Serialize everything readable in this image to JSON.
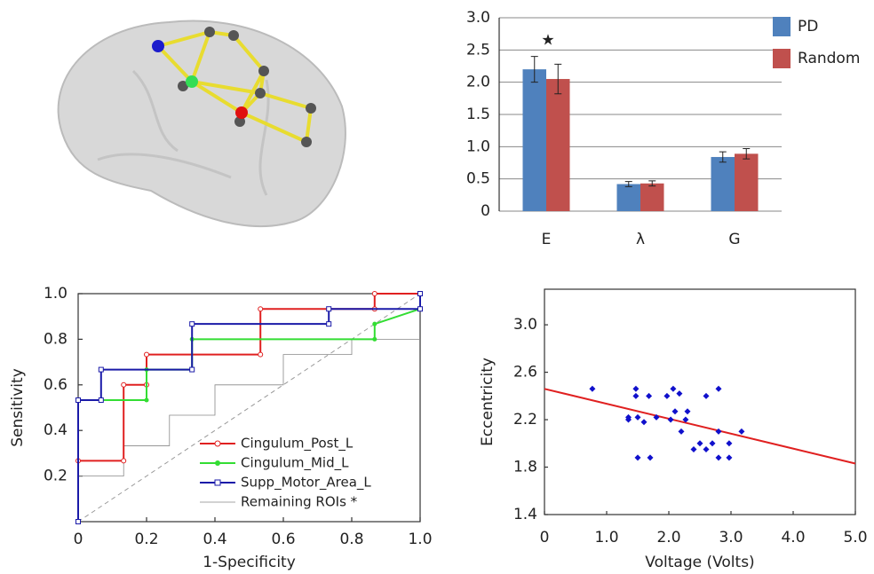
{
  "chart_data": [
    {
      "type": "bar",
      "categories": [
        "E",
        "λ",
        "G"
      ],
      "series": [
        {
          "name": "PD",
          "color": "#4f81bd",
          "values": [
            2.2,
            0.42,
            0.84
          ],
          "errors": [
            0.2,
            0.04,
            0.08
          ]
        },
        {
          "name": "Random",
          "color": "#c0504d",
          "values": [
            2.05,
            0.43,
            0.89
          ],
          "errors": [
            0.23,
            0.04,
            0.08
          ]
        }
      ],
      "annotation": "★",
      "ylim": [
        0,
        3
      ],
      "yticks": [
        0,
        0.5,
        {
          "value": 1,
          "label": "1.0"
        },
        1.5,
        {
          "value": 2,
          "label": "2.0"
        },
        2.5,
        {
          "value": 3,
          "label": "3.0"
        }
      ],
      "grid": true,
      "legend": "right"
    },
    {
      "type": "line",
      "xlabel": "1-Specificity",
      "ylabel": "Sensitivity",
      "series": [
        {
          "name": "Remaining ROIs *",
          "color": "#888888",
          "marker": "none",
          "x": [
            0,
            0,
            0.133,
            0.133,
            0.267,
            0.267,
            0.4,
            0.4,
            0.6,
            0.6,
            0.8,
            0.8,
            1
          ],
          "y": [
            0,
            0.2,
            0.2,
            0.333,
            0.333,
            0.467,
            0.467,
            0.6,
            0.6,
            0.733,
            0.733,
            0.8,
            0.8
          ]
        },
        {
          "name": "Cingulum_Post_L",
          "color": "#e02020",
          "marker": "circle",
          "x": [
            0,
            0,
            0.133,
            0.133,
            0.2,
            0.2,
            0.533,
            0.533,
            0.867,
            0.867,
            1
          ],
          "y": [
            0,
            0.267,
            0.267,
            0.6,
            0.6,
            0.733,
            0.733,
            0.933,
            0.933,
            1,
            1
          ]
        },
        {
          "name": "Cingulum_Mid_L",
          "color": "#33dd33",
          "marker": "dot",
          "x": [
            0,
            0,
            0.2,
            0.2,
            0.333,
            0.333,
            0.867,
            0.867,
            1
          ],
          "y": [
            0,
            0.533,
            0.533,
            0.667,
            0.667,
            0.8,
            0.8,
            0.867,
            0.933
          ]
        },
        {
          "name": "Supp_Motor_Area_L",
          "color": "#1a1aa8",
          "marker": "square",
          "x": [
            0,
            0,
            0.067,
            0.067,
            0.333,
            0.333,
            0.733,
            0.733,
            1,
            1
          ],
          "y": [
            0,
            0.533,
            0.533,
            0.667,
            0.667,
            0.867,
            0.867,
            0.933,
            0.933,
            1
          ]
        }
      ],
      "xlim": [
        0,
        1
      ],
      "ylim": [
        0,
        1
      ],
      "xticks": [
        0,
        0.2,
        0.4,
        0.6,
        0.8,
        {
          "value": 1,
          "label": "1.0"
        }
      ],
      "yticks": [
        0.2,
        0.4,
        0.6,
        0.8,
        {
          "value": 1,
          "label": "1.0"
        }
      ],
      "legend": "lower right"
    },
    {
      "type": "scatter",
      "xlabel": "Voltage (Volts)",
      "ylabel": "Eccentricity",
      "color": "#1010cc",
      "x": [
        0.77,
        1.35,
        1.35,
        1.47,
        1.47,
        1.5,
        1.5,
        1.6,
        1.68,
        1.7,
        1.8,
        1.97,
        2.03,
        2.07,
        2.1,
        2.17,
        2.2,
        2.27,
        2.3,
        2.4,
        2.5,
        2.6,
        2.6,
        2.7,
        2.8,
        2.8,
        2.8,
        2.97,
        2.97,
        3.17
      ],
      "y": [
        2.46,
        2.2,
        2.22,
        2.46,
        2.4,
        2.22,
        1.88,
        2.18,
        2.4,
        1.88,
        2.22,
        2.4,
        2.2,
        2.46,
        2.27,
        2.42,
        2.1,
        2.2,
        2.27,
        1.95,
        2.0,
        2.4,
        1.95,
        2.0,
        2.46,
        2.1,
        1.88,
        2.0,
        1.88,
        2.1
      ],
      "fit": {
        "color": "#e02020",
        "x": [
          0,
          5
        ],
        "y": [
          2.46,
          1.83
        ]
      },
      "xlim": [
        0,
        5
      ],
      "ylim": [
        1.4,
        3.3
      ],
      "xticks": [
        0,
        {
          "value": 1,
          "label": "1.0"
        },
        {
          "value": 2,
          "label": "2.0"
        },
        {
          "value": 3,
          "label": "3.0"
        },
        {
          "value": 4,
          "label": "4.0"
        },
        {
          "value": 5,
          "label": "5.0"
        }
      ],
      "yticks": [
        1.4,
        1.8,
        2.2,
        2.6,
        {
          "value": 3,
          "label": "3.0"
        }
      ]
    }
  ]
}
